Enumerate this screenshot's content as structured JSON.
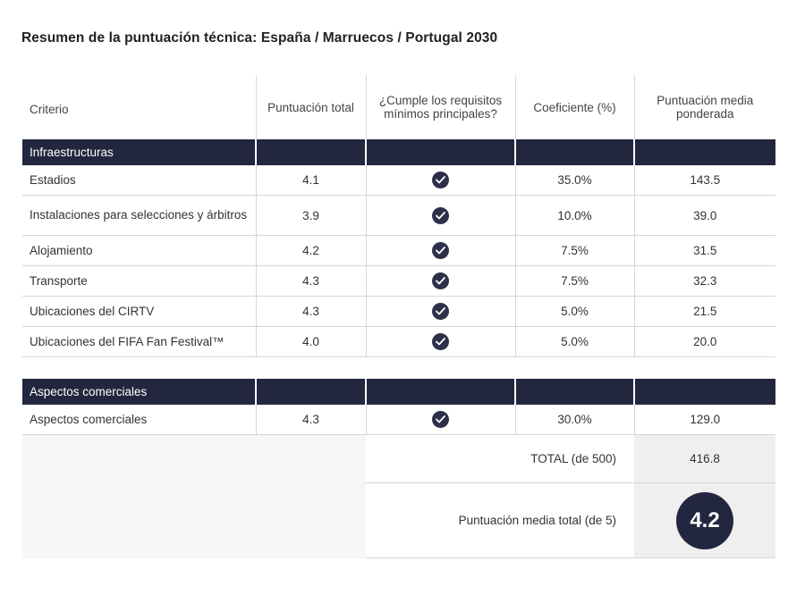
{
  "title": "Resumen de la puntuación técnica: España / Marruecos / Portugal 2030",
  "headers": {
    "criterio": "Criterio",
    "puntuacion_total": "Puntuación total",
    "cumple": "¿Cumple los requisitos mínimos principales?",
    "coeficiente": "Coeficiente (%)",
    "ponderada": "Puntuación media ponderada"
  },
  "sections": [
    {
      "name": "Infraestructuras",
      "rows": [
        {
          "criterio": "Estadios",
          "total": "4.1",
          "cumple": true,
          "coef": "35.0%",
          "ponderada": "143.5"
        },
        {
          "criterio": "Instalaciones para selecciones y árbitros",
          "total": "3.9",
          "cumple": true,
          "coef": "10.0%",
          "ponderada": "39.0"
        },
        {
          "criterio": "Alojamiento",
          "total": "4.2",
          "cumple": true,
          "coef": "7.5%",
          "ponderada": "31.5"
        },
        {
          "criterio": "Transporte",
          "total": "4.3",
          "cumple": true,
          "coef": "7.5%",
          "ponderada": "32.3"
        },
        {
          "criterio": "Ubicaciones del CIRTV",
          "total": "4.3",
          "cumple": true,
          "coef": "5.0%",
          "ponderada": "21.5"
        },
        {
          "criterio": "Ubicaciones del FIFA Fan Festival™",
          "total": "4.0",
          "cumple": true,
          "coef": "5.0%",
          "ponderada": "20.0"
        }
      ]
    },
    {
      "name": "Aspectos comerciales",
      "rows": [
        {
          "criterio": "Aspectos comerciales",
          "total": "4.3",
          "cumple": true,
          "coef": "30.0%",
          "ponderada": "129.0"
        }
      ]
    }
  ],
  "totals": {
    "total_label": "TOTAL (de 500)",
    "total_value": "416.8",
    "average_label": "Puntuación media total (de 5)",
    "average_value": "4.2"
  },
  "colors": {
    "header_band": "#23263f",
    "check_icon": "#2d3048"
  },
  "icons": {
    "check": "check-circle-icon"
  }
}
